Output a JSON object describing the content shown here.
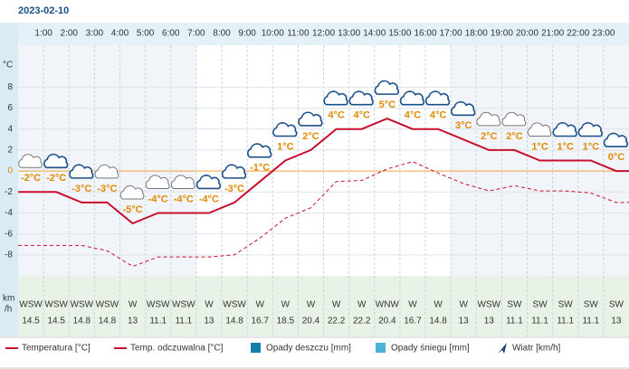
{
  "chart_data": {
    "type": "line",
    "title": "2023-02-10",
    "categories": [
      null,
      "1:00",
      "2:00",
      "3:00",
      "4:00",
      "5:00",
      "6:00",
      "7:00",
      "8:00",
      "9:00",
      "10:00",
      "11:00",
      "12:00",
      "13:00",
      "14:00",
      "15:00",
      "16:00",
      "17:00",
      "18:00",
      "19:00",
      "20:00",
      "21:00",
      "22:00",
      "23:00"
    ],
    "ylabel": "°C",
    "ylim": [
      -10,
      12
    ],
    "yticks": [
      -8,
      -6,
      -4,
      -2,
      0,
      2,
      4,
      6,
      8
    ],
    "grid": true,
    "series": [
      {
        "name": "Temperatura [°C]",
        "color": "#c8102e",
        "style": "solid",
        "values": [
          -2,
          -2,
          -3,
          -3,
          -5,
          -4,
          -4,
          -4,
          -3,
          -1,
          1,
          2,
          4,
          4,
          5,
          4,
          4,
          3,
          2,
          2,
          1,
          1,
          1,
          0
        ],
        "value_labels": [
          "-2°C",
          "-2°C",
          "-3°C",
          "-3°C",
          "-5°C",
          "-4°C",
          "-4°C",
          "-4°C",
          "-3°C",
          "-1°C",
          "1°C",
          "2°C",
          "4°C",
          "4°C",
          "5°C",
          "4°C",
          "4°C",
          "3°C",
          "2°C",
          "2°C",
          "1°C",
          "1°C",
          "1°C",
          "0°C"
        ]
      },
      {
        "name": "Temp. odczuwalna [°C]",
        "color": "#c8102e",
        "style": "dashed",
        "values": [
          -7.1,
          -7.1,
          -7.1,
          -7.6,
          -9.1,
          -8.2,
          -8.2,
          -8.2,
          -8.0,
          -6.4,
          -4.5,
          -3.5,
          -1.0,
          -0.9,
          0.2,
          0.9,
          -0.2,
          -1.2,
          -1.9,
          -1.4,
          -1.9,
          -1.9,
          -2.1,
          -3.0
        ]
      }
    ],
    "wind": {
      "unit": [
        "km",
        "/h"
      ],
      "directions": [
        "WSW",
        "WSW",
        "WSW",
        "WSW",
        "W",
        "WSW",
        "WSW",
        "W",
        "WSW",
        "W",
        "W",
        "W",
        "W",
        "W",
        "WNW",
        "W",
        "W",
        "W",
        "WSW",
        "SW",
        "SW",
        "SW",
        "SW",
        "SW"
      ],
      "speeds": [
        14.5,
        14.5,
        14.8,
        14.8,
        13,
        11.1,
        11.1,
        13,
        14.8,
        16.7,
        18.5,
        20.4,
        22.2,
        22.2,
        20.4,
        16.7,
        14.8,
        13,
        13,
        11.1,
        11.1,
        11.1,
        11.1,
        13
      ]
    },
    "legend": [
      {
        "name": "Opady deszczu [mm]",
        "color": "#0e7fa6"
      },
      {
        "name": "Opady śniegu [mm]",
        "color": "#4ab3d6"
      },
      {
        "name": "Wiatr [km/h]",
        "color": "#1b3f7a"
      }
    ]
  }
}
